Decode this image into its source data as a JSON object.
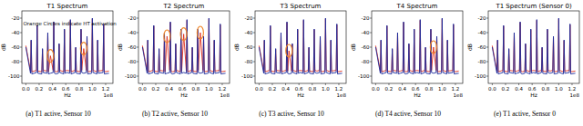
{
  "chart_data": [
    {
      "type": "line",
      "title": "T1 Spectrum",
      "caption": "(a) T1 active, Sensor 10",
      "annotation": "Orange Circles indicate HT activation",
      "xlabel": "Hz",
      "x_offset_label": "1e8",
      "ylabel": "dB",
      "grid": false,
      "xlim": [
        -0.06,
        1.31
      ],
      "ylim": [
        -110,
        -10
      ],
      "xticks": [
        {
          "value": 0,
          "label": "0.0"
        },
        0.2,
        0.4,
        0.6,
        0.8,
        {
          "value": 1,
          "label": "1.0"
        },
        1.2
      ],
      "yticks": [
        -100,
        -80,
        -60,
        -40,
        -20
      ],
      "x": [
        0.0,
        0.07,
        0.08,
        0.09,
        0.16,
        0.17,
        0.18,
        0.24,
        0.25,
        0.26,
        0.32,
        0.33,
        0.34,
        0.37,
        0.41,
        0.42,
        0.43,
        0.45,
        0.49,
        0.5,
        0.51,
        0.57,
        0.58,
        0.59,
        0.62,
        0.66,
        0.67,
        0.68,
        0.74,
        0.75,
        0.76,
        0.82,
        0.83,
        0.84,
        0.87,
        0.91,
        0.92,
        0.93,
        0.99,
        1.0,
        1.01,
        1.07,
        1.08,
        1.09,
        1.16,
        1.17,
        1.18,
        1.25
      ],
      "series": [
        {
          "color": "#e0301e",
          "values": [
            -58,
            -93,
            -51,
            -94,
            -92,
            -31,
            -93,
            -94,
            -63,
            -92,
            -93,
            -41,
            -94,
            -72,
            -92,
            -26,
            -93,
            -94,
            -93,
            -56,
            -92,
            -94,
            -36,
            -93,
            -92,
            -93,
            -23,
            -94,
            -92,
            -61,
            -93,
            -94,
            -36,
            -92,
            -62,
            -92,
            -46,
            -94,
            -93,
            -21,
            -92,
            -94,
            -51,
            -93,
            -92,
            -29,
            -94,
            -93
          ]
        },
        {
          "color": "#1c2a9c",
          "values": [
            -60,
            -96,
            -50,
            -97,
            -95,
            -30,
            -96,
            -97,
            -62,
            -95,
            -96,
            -40,
            -97,
            -96,
            -95,
            -25,
            -96,
            -97,
            -96,
            -55,
            -95,
            -97,
            -35,
            -96,
            -95,
            -96,
            -22,
            -97,
            -95,
            -60,
            -96,
            -97,
            -35,
            -95,
            -96,
            -95,
            -45,
            -97,
            -96,
            -20,
            -95,
            -97,
            -50,
            -96,
            -95,
            -28,
            -97,
            -96
          ]
        }
      ],
      "highlights": [
        {
          "x": 0.37,
          "y": -72
        },
        {
          "x": 0.87,
          "y": -62
        }
      ]
    },
    {
      "type": "line",
      "title": "T2 Spectrum",
      "caption": "(b) T2 active, Sensor 10",
      "xlabel": "Hz",
      "x_offset_label": "1e8",
      "ylabel": "dB",
      "grid": false,
      "xlim": [
        -0.06,
        1.31
      ],
      "ylim": [
        -110,
        -10
      ],
      "xticks": [
        {
          "value": 0,
          "label": "0.0"
        },
        0.2,
        0.4,
        0.6,
        0.8,
        {
          "value": 1,
          "label": "1.0"
        },
        1.2
      ],
      "yticks": [
        -100,
        -80,
        -60,
        -40,
        -20
      ],
      "x": [
        0.0,
        0.07,
        0.08,
        0.09,
        0.16,
        0.17,
        0.18,
        0.24,
        0.25,
        0.26,
        0.32,
        0.33,
        0.34,
        0.37,
        0.41,
        0.42,
        0.43,
        0.45,
        0.49,
        0.5,
        0.51,
        0.57,
        0.58,
        0.59,
        0.62,
        0.66,
        0.67,
        0.68,
        0.74,
        0.75,
        0.76,
        0.82,
        0.83,
        0.84,
        0.87,
        0.91,
        0.92,
        0.93,
        0.99,
        1.0,
        1.01,
        1.07,
        1.08,
        1.09,
        1.16,
        1.17,
        1.18,
        1.25
      ],
      "series": [
        {
          "color": "#e0301e",
          "values": [
            -58,
            -93,
            -51,
            -94,
            -92,
            -31,
            -93,
            -94,
            -63,
            -92,
            -93,
            -41,
            -94,
            -45,
            -92,
            -26,
            -93,
            -94,
            -93,
            -56,
            -92,
            -94,
            -36,
            -93,
            -42,
            -93,
            -23,
            -94,
            -92,
            -61,
            -93,
            -94,
            -36,
            -92,
            -40,
            -92,
            -46,
            -94,
            -93,
            -21,
            -92,
            -94,
            -51,
            -93,
            -92,
            -29,
            -94,
            -93
          ]
        },
        {
          "color": "#1c2a9c",
          "values": [
            -60,
            -96,
            -50,
            -97,
            -95,
            -30,
            -96,
            -97,
            -62,
            -95,
            -96,
            -40,
            -97,
            -96,
            -95,
            -25,
            -96,
            -97,
            -96,
            -55,
            -95,
            -97,
            -35,
            -96,
            -95,
            -96,
            -22,
            -97,
            -95,
            -60,
            -96,
            -97,
            -35,
            -95,
            -96,
            -95,
            -45,
            -97,
            -96,
            -20,
            -95,
            -97,
            -50,
            -96,
            -95,
            -28,
            -97,
            -96
          ]
        }
      ],
      "highlights": [
        {
          "x": 0.37,
          "y": -45
        },
        {
          "x": 0.62,
          "y": -42
        },
        {
          "x": 0.87,
          "y": -40
        }
      ]
    },
    {
      "type": "line",
      "title": "T3 Spectrum",
      "caption": "(c) T3 active, Sensor 10",
      "xlabel": "Hz",
      "x_offset_label": "1e8",
      "ylabel": "dB",
      "grid": false,
      "xlim": [
        -0.06,
        1.31
      ],
      "ylim": [
        -110,
        -10
      ],
      "xticks": [
        {
          "value": 0,
          "label": "0.0"
        },
        0.2,
        0.4,
        0.6,
        0.8,
        {
          "value": 1,
          "label": "1.0"
        },
        1.2
      ],
      "yticks": [
        -100,
        -80,
        -60,
        -40,
        -20
      ],
      "x": [
        0.0,
        0.07,
        0.08,
        0.09,
        0.16,
        0.17,
        0.18,
        0.24,
        0.25,
        0.26,
        0.32,
        0.33,
        0.34,
        0.37,
        0.41,
        0.42,
        0.43,
        0.45,
        0.49,
        0.5,
        0.51,
        0.57,
        0.58,
        0.59,
        0.62,
        0.66,
        0.67,
        0.68,
        0.74,
        0.75,
        0.76,
        0.82,
        0.83,
        0.84,
        0.87,
        0.91,
        0.92,
        0.93,
        0.99,
        1.0,
        1.01,
        1.07,
        1.08,
        1.09,
        1.16,
        1.17,
        1.18,
        1.25
      ],
      "series": [
        {
          "color": "#e0301e",
          "values": [
            -58,
            -93,
            -51,
            -94,
            -92,
            -31,
            -93,
            -94,
            -63,
            -92,
            -93,
            -41,
            -94,
            -93,
            -92,
            -26,
            -93,
            -65,
            -93,
            -56,
            -92,
            -94,
            -36,
            -93,
            -92,
            -93,
            -23,
            -94,
            -92,
            -61,
            -93,
            -94,
            -36,
            -92,
            -93,
            -92,
            -46,
            -94,
            -93,
            -21,
            -92,
            -94,
            -51,
            -93,
            -92,
            -29,
            -94,
            -93
          ]
        },
        {
          "color": "#1c2a9c",
          "values": [
            -60,
            -96,
            -50,
            -97,
            -95,
            -30,
            -96,
            -97,
            -62,
            -95,
            -96,
            -40,
            -97,
            -96,
            -95,
            -25,
            -96,
            -97,
            -96,
            -55,
            -95,
            -97,
            -35,
            -96,
            -95,
            -96,
            -22,
            -97,
            -95,
            -60,
            -96,
            -97,
            -35,
            -95,
            -96,
            -95,
            -45,
            -97,
            -96,
            -20,
            -95,
            -97,
            -50,
            -96,
            -95,
            -28,
            -97,
            -96
          ]
        }
      ],
      "highlights": [
        {
          "x": 0.45,
          "y": -65
        }
      ]
    },
    {
      "type": "line",
      "title": "T4 Spectrum",
      "caption": "(d) T4 active, Sensor 10",
      "xlabel": "Hz",
      "x_offset_label": "1e8",
      "ylabel": "dB",
      "grid": false,
      "xlim": [
        -0.06,
        1.31
      ],
      "ylim": [
        -110,
        -10
      ],
      "xticks": [
        {
          "value": 0,
          "label": "0.0"
        },
        0.2,
        0.4,
        0.6,
        0.8,
        {
          "value": 1,
          "label": "1.0"
        },
        1.2
      ],
      "yticks": [
        -100,
        -80,
        -60,
        -40,
        -20
      ],
      "x": [
        0.0,
        0.07,
        0.08,
        0.09,
        0.16,
        0.17,
        0.18,
        0.24,
        0.25,
        0.26,
        0.32,
        0.33,
        0.34,
        0.37,
        0.41,
        0.42,
        0.43,
        0.45,
        0.49,
        0.5,
        0.51,
        0.57,
        0.58,
        0.59,
        0.62,
        0.66,
        0.67,
        0.68,
        0.74,
        0.75,
        0.76,
        0.82,
        0.83,
        0.84,
        0.87,
        0.91,
        0.92,
        0.93,
        0.99,
        1.0,
        1.01,
        1.07,
        1.08,
        1.09,
        1.16,
        1.17,
        1.18,
        1.25
      ],
      "series": [
        {
          "color": "#e0301e",
          "values": [
            -58,
            -93,
            -51,
            -94,
            -92,
            -31,
            -93,
            -94,
            -63,
            -92,
            -93,
            -41,
            -94,
            -93,
            -92,
            -26,
            -93,
            -94,
            -93,
            -56,
            -92,
            -94,
            -36,
            -93,
            -92,
            -93,
            -23,
            -94,
            -92,
            -61,
            -93,
            -94,
            -36,
            -92,
            -60,
            -92,
            -46,
            -94,
            -93,
            -21,
            -92,
            -94,
            -51,
            -93,
            -92,
            -29,
            -94,
            -93
          ]
        },
        {
          "color": "#1c2a9c",
          "values": [
            -60,
            -96,
            -50,
            -97,
            -95,
            -30,
            -96,
            -97,
            -62,
            -95,
            -96,
            -40,
            -97,
            -96,
            -95,
            -25,
            -96,
            -97,
            -96,
            -55,
            -95,
            -97,
            -35,
            -96,
            -95,
            -96,
            -22,
            -97,
            -95,
            -60,
            -96,
            -97,
            -35,
            -95,
            -96,
            -95,
            -45,
            -97,
            -96,
            -20,
            -95,
            -97,
            -50,
            -96,
            -95,
            -28,
            -97,
            -96
          ]
        }
      ],
      "highlights": [
        {
          "x": 0.87,
          "y": -60
        }
      ]
    },
    {
      "type": "line",
      "title": "T1 Spectrum (Sensor 0)",
      "caption": "(e) T1 active, Sensor 0",
      "xlabel": "Hz",
      "x_offset_label": "1e8",
      "ylabel": "dB",
      "grid": false,
      "xlim": [
        -0.06,
        1.31
      ],
      "ylim": [
        -110,
        -10
      ],
      "xticks": [
        {
          "value": 0,
          "label": "0.0"
        },
        0.2,
        0.4,
        0.6,
        0.8,
        {
          "value": 1,
          "label": "1.0"
        },
        1.2
      ],
      "yticks": [
        -100,
        -80,
        -60,
        -40,
        -20
      ],
      "x": [
        0.0,
        0.07,
        0.08,
        0.09,
        0.16,
        0.17,
        0.18,
        0.24,
        0.25,
        0.26,
        0.32,
        0.33,
        0.34,
        0.37,
        0.41,
        0.42,
        0.43,
        0.45,
        0.49,
        0.5,
        0.51,
        0.57,
        0.58,
        0.59,
        0.62,
        0.66,
        0.67,
        0.68,
        0.74,
        0.75,
        0.76,
        0.82,
        0.83,
        0.84,
        0.87,
        0.91,
        0.92,
        0.93,
        0.99,
        1.0,
        1.01,
        1.07,
        1.08,
        1.09,
        1.16,
        1.17,
        1.18,
        1.25
      ],
      "series": [
        {
          "color": "#e0301e",
          "values": [
            -58,
            -93,
            -51,
            -94,
            -92,
            -31,
            -93,
            -94,
            -63,
            -92,
            -93,
            -41,
            -94,
            -93,
            -92,
            -26,
            -93,
            -94,
            -93,
            -56,
            -92,
            -94,
            -36,
            -93,
            -92,
            -93,
            -23,
            -94,
            -92,
            -61,
            -93,
            -94,
            -36,
            -92,
            -93,
            -92,
            -46,
            -94,
            -93,
            -21,
            -92,
            -94,
            -51,
            -93,
            -92,
            -29,
            -94,
            -93
          ]
        },
        {
          "color": "#1c2a9c",
          "values": [
            -60,
            -96,
            -50,
            -97,
            -95,
            -30,
            -96,
            -97,
            -62,
            -95,
            -96,
            -40,
            -97,
            -96,
            -95,
            -25,
            -96,
            -97,
            -96,
            -55,
            -95,
            -97,
            -35,
            -96,
            -95,
            -96,
            -22,
            -97,
            -95,
            -60,
            -96,
            -97,
            -35,
            -95,
            -96,
            -95,
            -45,
            -97,
            -96,
            -20,
            -95,
            -97,
            -50,
            -96,
            -95,
            -28,
            -97,
            -96
          ]
        }
      ]
    }
  ]
}
